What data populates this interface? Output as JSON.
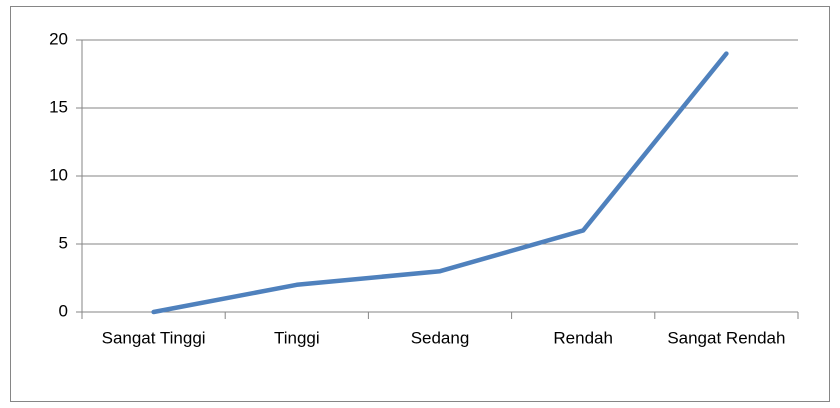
{
  "chart_data": {
    "type": "line",
    "categories": [
      "Sangat Tinggi",
      "Tinggi",
      "Sedang",
      "Rendah",
      "Sangat Rendah"
    ],
    "values": [
      0,
      2,
      3,
      6,
      19
    ],
    "color": "#4f81bd",
    "ylim": [
      0,
      20
    ],
    "yticks": [
      0,
      5,
      10,
      15,
      20
    ],
    "grid": true
  }
}
